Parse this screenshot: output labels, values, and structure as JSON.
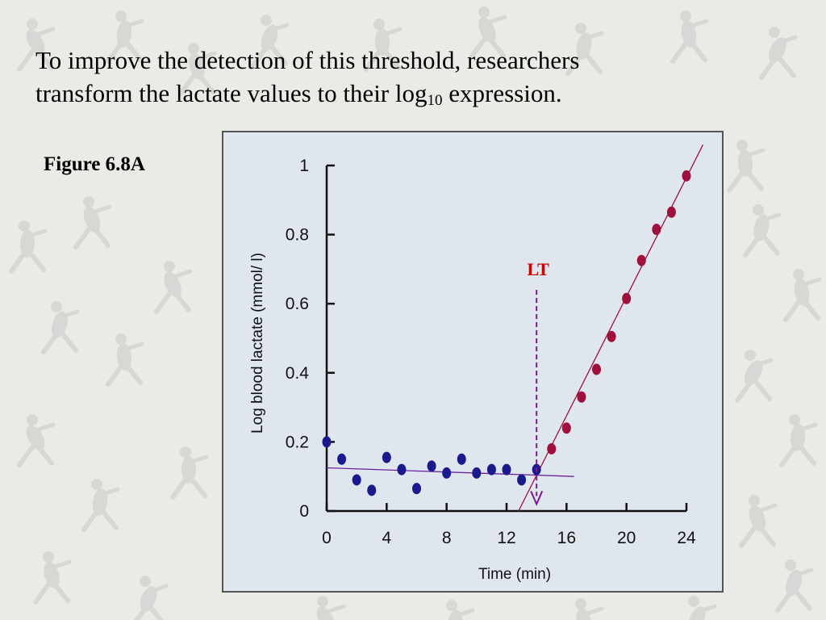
{
  "heading": {
    "line1": "To  improve the detection of this threshold, researchers",
    "line2_pre": "transform the lactate values to their log",
    "line2_sub": "10",
    "line2_post": " expression."
  },
  "figure_label": "Figure 6.8A",
  "chart_data": {
    "type": "scatter",
    "title": "",
    "xlabel": "Time (min)",
    "ylabel": "Log blood lactate (mmol/ l)",
    "xlim": [
      0,
      24
    ],
    "ylim": [
      0,
      1
    ],
    "x_ticks": [
      0,
      4,
      8,
      12,
      16,
      20,
      24
    ],
    "x_tick_labels": [
      "0",
      "4",
      "8",
      "12",
      "16",
      "20",
      "24"
    ],
    "y_ticks": [
      0,
      0.2,
      0.4,
      0.6,
      0.8,
      1
    ],
    "y_tick_labels": [
      "0",
      "0.2",
      "0.4",
      "0.6",
      "0.8",
      "1"
    ],
    "series": [
      {
        "color": "#1a1a8c",
        "x": [
          0,
          1,
          2,
          3,
          4,
          5,
          6,
          7,
          8,
          9,
          10,
          11,
          12,
          13,
          14
        ],
        "y": [
          0.2,
          0.15,
          0.09,
          0.06,
          0.155,
          0.12,
          0.065,
          0.13,
          0.11,
          0.15,
          0.11,
          0.12,
          0.12,
          0.09,
          0.12
        ]
      },
      {
        "color": "#a0103c",
        "x": [
          15,
          16,
          17,
          18,
          19,
          20,
          21,
          22,
          23,
          24
        ],
        "y": [
          0.18,
          0.24,
          0.33,
          0.41,
          0.505,
          0.615,
          0.725,
          0.815,
          0.865,
          0.97
        ]
      }
    ],
    "fit_lines": [
      {
        "color": "#6a1fa0",
        "points": [
          [
            0,
            0.125
          ],
          [
            16.5,
            0.1
          ]
        ]
      },
      {
        "color": "#a0103c",
        "points": [
          [
            12.8,
            0
          ],
          [
            25.1,
            1.06
          ]
        ]
      }
    ],
    "annotation": {
      "label": "LT",
      "label_color": "#cc0000",
      "arrow_color": "#7a1a8c",
      "x": 14,
      "y_from": 0.64,
      "y_to": 0.02
    }
  }
}
